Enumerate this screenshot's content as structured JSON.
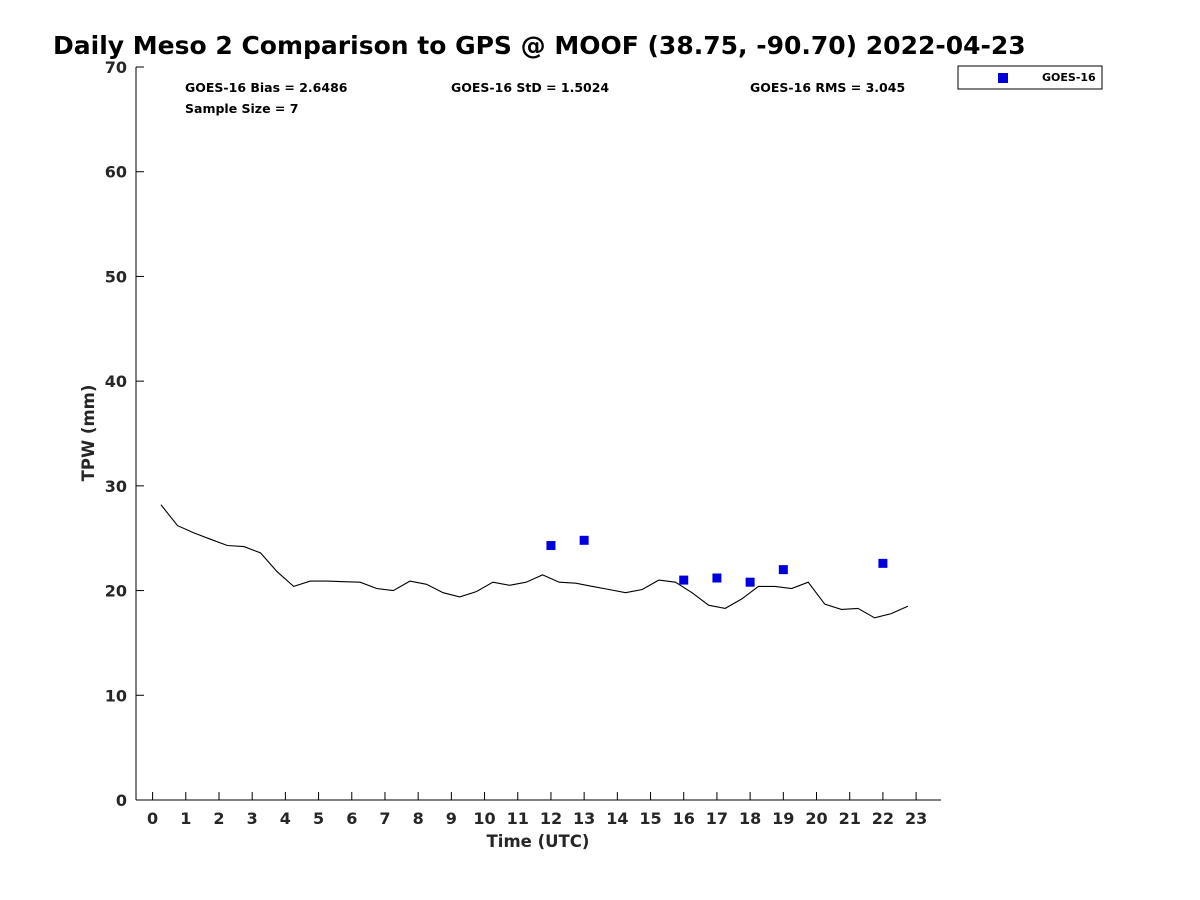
{
  "chart_data": {
    "type": "line",
    "title": "Daily Meso 2 Comparison to GPS @ MOOF (38.75, -90.70) 2022-04-23",
    "xlabel": "Time (UTC)",
    "ylabel": "TPW (mm)",
    "xlim": [
      -0.5,
      23.75
    ],
    "ylim": [
      0,
      70
    ],
    "x_ticks": [
      0,
      1,
      2,
      3,
      4,
      5,
      6,
      7,
      8,
      9,
      10,
      11,
      12,
      13,
      14,
      15,
      16,
      17,
      18,
      19,
      20,
      21,
      22,
      23
    ],
    "y_ticks": [
      0,
      10,
      20,
      30,
      40,
      50,
      60,
      70
    ],
    "grid": false,
    "legend_position": "outside-top-right",
    "stats": {
      "bias": "GOES-16 Bias = 2.6486",
      "std": "GOES-16 StD = 1.5024",
      "rms": "GOES-16 RMS = 3.045",
      "sample_size": "Sample Size = 7"
    },
    "series": [
      {
        "type": "line",
        "color": "#000000",
        "x": [
          0.25,
          0.75,
          1.25,
          1.75,
          2.25,
          2.75,
          3.25,
          3.75,
          4.25,
          4.75,
          5.25,
          5.75,
          6.25,
          6.75,
          7.25,
          7.75,
          8.25,
          8.75,
          9.25,
          9.75,
          10.25,
          10.75,
          11.25,
          11.75,
          12.25,
          12.75,
          13.25,
          13.75,
          14.25,
          14.75,
          15.25,
          15.75,
          16.25,
          16.75,
          17.25,
          17.75,
          18.25,
          18.75,
          19.25,
          19.75,
          20.25,
          20.75,
          21.25,
          21.75,
          22.25,
          22.75
        ],
        "y": [
          28.2,
          26.2,
          25.5,
          24.9,
          24.3,
          24.2,
          23.6,
          21.8,
          20.4,
          20.9,
          20.9,
          20.85,
          20.8,
          20.2,
          20.0,
          20.9,
          20.6,
          19.8,
          19.4,
          19.9,
          20.8,
          20.5,
          20.8,
          21.5,
          20.8,
          20.7,
          20.4,
          20.1,
          19.8,
          20.1,
          21.0,
          20.8,
          19.8,
          18.6,
          18.3,
          19.2,
          20.4,
          20.4,
          20.2,
          20.8,
          18.7,
          18.2,
          18.3,
          17.4,
          17.8,
          18.5
        ]
      },
      {
        "name": "GOES-16",
        "type": "scatter",
        "marker": "square",
        "color": "#0000dd",
        "x": [
          12,
          13,
          16,
          17,
          18,
          19,
          22
        ],
        "y": [
          24.3,
          24.8,
          21.0,
          21.2,
          20.8,
          22.0,
          22.6
        ]
      }
    ]
  }
}
